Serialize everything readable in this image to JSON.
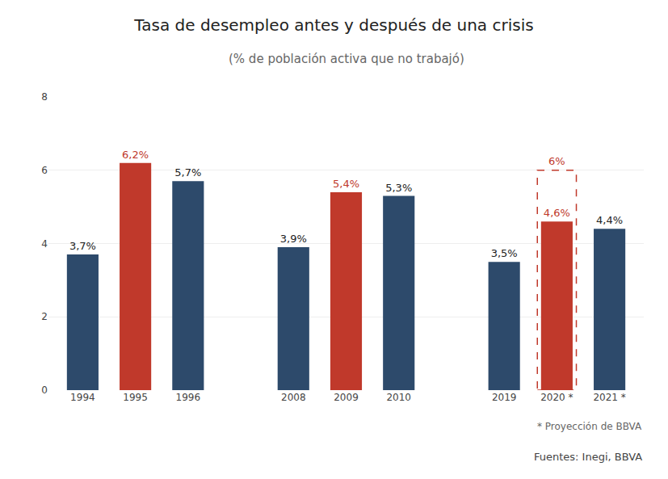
{
  "chart_data": {
    "type": "bar",
    "title": "Tasa de desempleo antes y después de una crisis",
    "subtitle": "(% de población activa que no trabajó)",
    "categories": [
      "1994",
      "1995",
      "1996",
      null,
      "2008",
      "2009",
      "2010",
      null,
      "2019",
      "2020 *",
      "2021 *"
    ],
    "values": [
      3.7,
      6.2,
      5.7,
      null,
      3.9,
      5.4,
      5.3,
      null,
      3.5,
      4.6,
      4.4
    ],
    "value_labels": [
      "3,7%",
      "6,2%",
      "5,7%",
      null,
      "3,9%",
      "5,4%",
      "5,3%",
      null,
      "3,5%",
      "4,6%",
      "4,4%"
    ],
    "colors": [
      "#2d4a6b",
      "#c0392b",
      "#2d4a6b",
      null,
      "#2d4a6b",
      "#c0392b",
      "#2d4a6b",
      null,
      "#2d4a6b",
      "#c0392b",
      "#2d4a6b"
    ],
    "data_labels": true,
    "annotations": [
      {
        "text": "6%",
        "category": "2020 *",
        "value": 6.0,
        "color": "#c0392b",
        "line_style": "dashed"
      }
    ],
    "note": "* Proyección de BBVA",
    "source": "Fuentes: Inegi, BBVA",
    "ylim": [
      0,
      8
    ],
    "yticks": [
      0,
      2,
      4,
      6,
      8
    ],
    "grid": true
  }
}
